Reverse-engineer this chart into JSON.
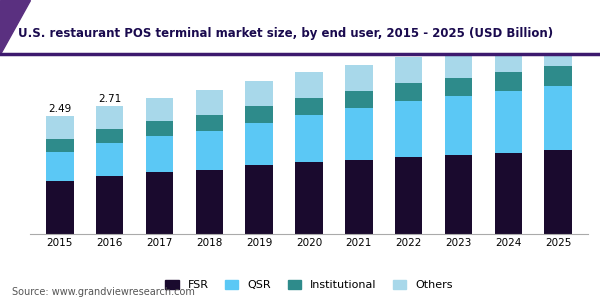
{
  "title": "U.S. restaurant POS terminal market size, by end user, 2015 - 2025 (USD Billion)",
  "years": [
    2015,
    2016,
    2017,
    2018,
    2019,
    2020,
    2021,
    2022,
    2023,
    2024,
    2025
  ],
  "fsr": [
    1.12,
    1.22,
    1.3,
    1.36,
    1.45,
    1.52,
    1.57,
    1.62,
    1.67,
    1.72,
    1.77
  ],
  "qsr": [
    0.62,
    0.7,
    0.76,
    0.82,
    0.9,
    1.0,
    1.08,
    1.18,
    1.24,
    1.3,
    1.36
  ],
  "institutional": [
    0.27,
    0.3,
    0.32,
    0.34,
    0.35,
    0.36,
    0.37,
    0.38,
    0.39,
    0.4,
    0.41
  ],
  "others": [
    0.48,
    0.49,
    0.5,
    0.51,
    0.52,
    0.53,
    0.54,
    0.55,
    0.56,
    0.57,
    0.58
  ],
  "annotations": {
    "2015": "2.49",
    "2016": "2.71"
  },
  "colors": {
    "fsr": "#1a0a2e",
    "qsr": "#5bc8f5",
    "institutional": "#2e8b8b",
    "others": "#a8d8ea"
  },
  "legend_labels": [
    "FSR",
    "QSR",
    "Institutional",
    "Others"
  ],
  "source": "Source: www.grandviewresearch.com",
  "title_color": "#1a0a4e",
  "background_color": "#ffffff",
  "bar_width": 0.55,
  "ylim": [
    0,
    3.8
  ],
  "title_fontsize": 8.5,
  "header_line_color": "#4a2070",
  "header_bg_color": "#e8e0f0"
}
